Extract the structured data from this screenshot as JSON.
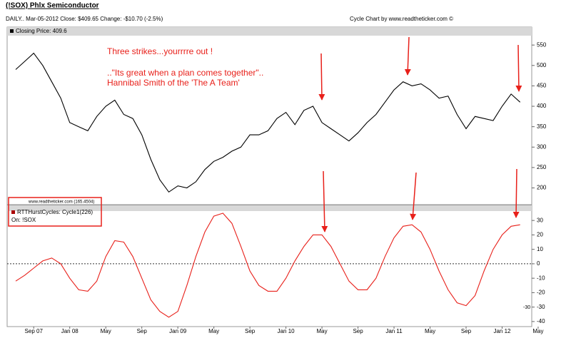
{
  "header": {
    "title": "(!SOX) Phlx Semiconductor",
    "info": "DAILY.. Mar-05-2012  Close: $409.65  Change: -$10.70  (-2.5%)",
    "credit": "Cycle Chart by www.readtheticker.com ©"
  },
  "chart_data": [
    {
      "type": "line",
      "title": "Closing Price: 409.6",
      "color": "#000000",
      "watermark": "www.readtheticker.com (165.4504)",
      "annotations": [
        "Three strikes...yourrrre out !",
        "..\"Its great when a plan comes together\"..",
        "Hannibal Smith of the  'The A Team'"
      ],
      "values": [
        490,
        510,
        530,
        500,
        460,
        420,
        360,
        350,
        340,
        375,
        400,
        415,
        380,
        370,
        330,
        270,
        220,
        190,
        205,
        200,
        215,
        245,
        265,
        275,
        290,
        300,
        330,
        330,
        340,
        370,
        385,
        355,
        390,
        400,
        360,
        345,
        330,
        315,
        335,
        360,
        380,
        410,
        440,
        460,
        450,
        455,
        440,
        420,
        425,
        380,
        345,
        375,
        370,
        365,
        400,
        430,
        410,
        null,
        null
      ],
      "ylim": [
        159,
        573
      ],
      "yticks": [
        200,
        250,
        300,
        350,
        400,
        450,
        500,
        550
      ]
    },
    {
      "type": "line",
      "title": "RTTHurstCycles: Cycle1(226)",
      "subtitle": "On: !SOX",
      "color": "#e8201a",
      "marker_label": "-30",
      "categories": [
        null,
        null,
        "Sep 07",
        null,
        null,
        null,
        "Jan 08",
        null,
        null,
        null,
        "May",
        null,
        null,
        null,
        "Sep",
        null,
        null,
        null,
        "Jan 09",
        null,
        null,
        null,
        "May",
        null,
        null,
        null,
        "Sep",
        null,
        null,
        null,
        "Jan 10",
        null,
        null,
        null,
        "May",
        null,
        null,
        null,
        "Sep",
        null,
        null,
        null,
        "Jan 11",
        null,
        null,
        null,
        "May",
        null,
        null,
        null,
        "Sep",
        null,
        null,
        null,
        "Jan 12",
        null,
        null,
        null,
        "May"
      ],
      "values": [
        -12,
        -8,
        -3,
        2,
        4,
        0,
        -10,
        -18,
        -19,
        -12,
        5,
        16,
        15,
        5,
        -10,
        -25,
        -33,
        -37,
        -33,
        -15,
        5,
        22,
        33,
        35,
        28,
        12,
        -5,
        -15,
        -19,
        -19,
        -10,
        2,
        12,
        20,
        20,
        12,
        0,
        -12,
        -18,
        -18,
        -10,
        5,
        18,
        26,
        27,
        22,
        10,
        -5,
        -18,
        -27,
        -29,
        -22,
        -5,
        10,
        20,
        26,
        27,
        null,
        null
      ],
      "ylim": [
        -43.5,
        36.5
      ],
      "yticks": [
        30,
        20,
        10,
        0,
        -10,
        -20,
        -30,
        -40
      ]
    }
  ]
}
